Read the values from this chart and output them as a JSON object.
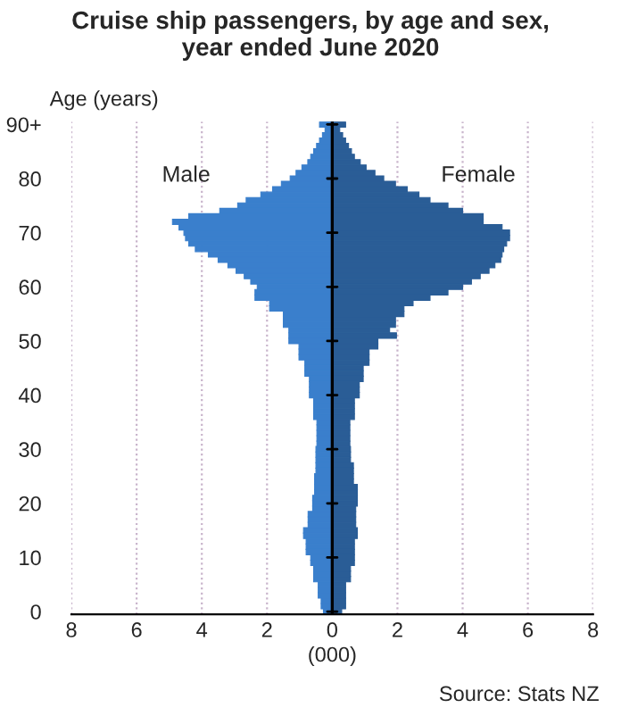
{
  "chart_data": {
    "type": "bar",
    "orientation": "horizontal",
    "stacked": true,
    "title": "Cruise ship passengers, by age and sex,\nyear ended June 2020",
    "ylabel": "Age (years)",
    "xlabel": "(000)",
    "annotations": [
      "Source: Stats NZ"
    ],
    "categories": [
      "90+",
      null,
      null,
      null,
      null,
      null,
      null,
      null,
      null,
      null,
      "80",
      null,
      null,
      null,
      null,
      null,
      null,
      null,
      null,
      null,
      "70",
      null,
      null,
      null,
      null,
      null,
      null,
      null,
      null,
      null,
      "60",
      null,
      null,
      null,
      null,
      null,
      null,
      null,
      null,
      null,
      "50",
      null,
      null,
      null,
      null,
      null,
      null,
      null,
      null,
      null,
      "40",
      null,
      null,
      null,
      null,
      null,
      null,
      null,
      null,
      null,
      "30",
      null,
      null,
      null,
      null,
      null,
      null,
      null,
      null,
      null,
      "20",
      null,
      null,
      null,
      null,
      null,
      null,
      null,
      null,
      null,
      "10",
      null,
      null,
      null,
      null,
      null,
      null,
      null,
      null,
      null,
      "0"
    ],
    "series": [
      {
        "name": "Male",
        "color": "#3a7fcc",
        "values": [
          -0.39,
          -0.22,
          -0.3,
          -0.39,
          -0.48,
          -0.57,
          -0.66,
          -0.75,
          -0.93,
          -1.11,
          -1.29,
          -1.56,
          -1.83,
          -2.19,
          -2.64,
          -2.9,
          -3.45,
          -4.4,
          -4.9,
          -4.7,
          -4.55,
          -4.5,
          -4.4,
          -4.2,
          -3.8,
          -3.5,
          -3.2,
          -2.95,
          -2.7,
          -2.5,
          -2.3,
          -2.37,
          -2.37,
          -1.92,
          -1.92,
          -1.5,
          -1.5,
          -1.5,
          -1.33,
          -1.33,
          -1.33,
          -1.02,
          -1.02,
          -1.02,
          -0.84,
          -0.84,
          -0.84,
          -0.7,
          -0.7,
          -0.7,
          -0.7,
          -0.57,
          -0.57,
          -0.57,
          -0.57,
          -0.47,
          -0.47,
          -0.47,
          -0.47,
          -0.47,
          -0.5,
          -0.5,
          -0.5,
          -0.5,
          -0.5,
          -0.54,
          -0.54,
          -0.54,
          -0.54,
          -0.6,
          -0.6,
          -0.6,
          -0.74,
          -0.74,
          -0.74,
          -0.88,
          -0.88,
          -0.8,
          -0.8,
          -0.8,
          -0.66,
          -0.66,
          -0.57,
          -0.57,
          -0.57,
          -0.43,
          -0.43,
          -0.43,
          -0.34,
          -0.34,
          -0.27
        ]
      },
      {
        "name": "Female",
        "color": "#2a5d96",
        "values": [
          0.41,
          0.23,
          0.32,
          0.41,
          0.5,
          0.59,
          0.68,
          0.86,
          1.04,
          1.31,
          1.58,
          1.94,
          2.3,
          2.66,
          3.0,
          3.55,
          4.0,
          4.63,
          4.63,
          5.21,
          5.44,
          5.44,
          5.35,
          5.26,
          5.21,
          5.17,
          4.99,
          4.81,
          4.54,
          4.27,
          4.0,
          3.55,
          3.0,
          2.48,
          2.2,
          2.2,
          1.94,
          1.94,
          1.76,
          1.97,
          1.4,
          1.4,
          1.13,
          1.13,
          1.13,
          0.95,
          0.95,
          0.95,
          0.83,
          0.83,
          0.83,
          0.68,
          0.68,
          0.68,
          0.68,
          0.54,
          0.54,
          0.54,
          0.54,
          0.54,
          0.56,
          0.56,
          0.56,
          0.65,
          0.65,
          0.65,
          0.65,
          0.77,
          0.77,
          0.77,
          0.77,
          0.72,
          0.72,
          0.72,
          0.72,
          0.77,
          0.77,
          0.68,
          0.68,
          0.68,
          0.68,
          0.68,
          0.56,
          0.56,
          0.56,
          0.41,
          0.41,
          0.41,
          0.41,
          0.41,
          0.29
        ]
      }
    ],
    "xlim": [
      -8,
      8
    ],
    "xticks": [
      {
        "value": -8,
        "label": "8"
      },
      {
        "value": -6,
        "label": "6"
      },
      {
        "value": -4,
        "label": "4"
      },
      {
        "value": -2,
        "label": "2"
      },
      0,
      2,
      4,
      6,
      8
    ],
    "grid": "x",
    "legend": false
  }
}
